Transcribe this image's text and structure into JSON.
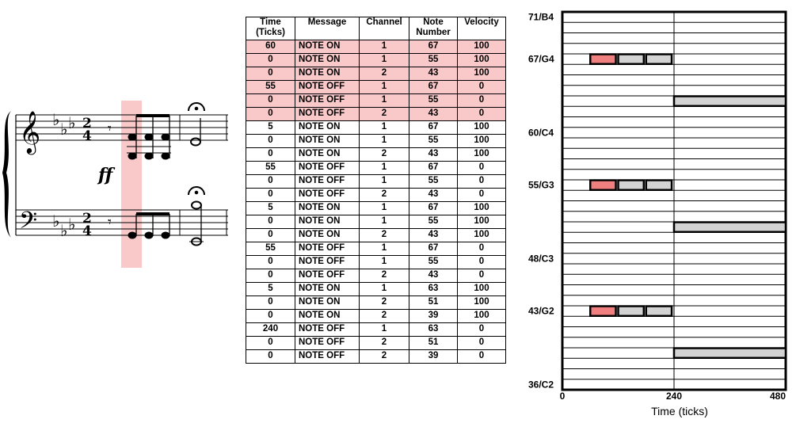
{
  "table": {
    "headers": [
      "Time\n(Ticks)",
      "Message",
      "Channel",
      "Note\nNumber",
      "Velocity"
    ],
    "highlight_rows": 6,
    "rows": [
      [
        "60",
        "NOTE ON",
        "1",
        "67",
        "100"
      ],
      [
        "0",
        "NOTE ON",
        "1",
        "55",
        "100"
      ],
      [
        "0",
        "NOTE ON",
        "2",
        "43",
        "100"
      ],
      [
        "55",
        "NOTE OFF",
        "1",
        "67",
        "0"
      ],
      [
        "0",
        "NOTE OFF",
        "1",
        "55",
        "0"
      ],
      [
        "0",
        "NOTE OFF",
        "2",
        "43",
        "0"
      ],
      [
        "5",
        "NOTE ON",
        "1",
        "67",
        "100"
      ],
      [
        "0",
        "NOTE ON",
        "1",
        "55",
        "100"
      ],
      [
        "0",
        "NOTE ON",
        "2",
        "43",
        "100"
      ],
      [
        "55",
        "NOTE OFF",
        "1",
        "67",
        "0"
      ],
      [
        "0",
        "NOTE OFF",
        "1",
        "55",
        "0"
      ],
      [
        "0",
        "NOTE OFF",
        "2",
        "43",
        "0"
      ],
      [
        "5",
        "NOTE ON",
        "1",
        "67",
        "100"
      ],
      [
        "0",
        "NOTE ON",
        "1",
        "55",
        "100"
      ],
      [
        "0",
        "NOTE ON",
        "2",
        "43",
        "100"
      ],
      [
        "55",
        "NOTE OFF",
        "1",
        "67",
        "0"
      ],
      [
        "0",
        "NOTE OFF",
        "1",
        "55",
        "0"
      ],
      [
        "0",
        "NOTE OFF",
        "2",
        "43",
        "0"
      ],
      [
        "5",
        "NOTE ON",
        "1",
        "63",
        "100"
      ],
      [
        "0",
        "NOTE ON",
        "2",
        "51",
        "100"
      ],
      [
        "0",
        "NOTE ON",
        "2",
        "39",
        "100"
      ],
      [
        "240",
        "NOTE OFF",
        "1",
        "63",
        "0"
      ],
      [
        "0",
        "NOTE OFF",
        "2",
        "51",
        "0"
      ],
      [
        "0",
        "NOTE OFF",
        "2",
        "39",
        "0"
      ]
    ]
  },
  "score": {
    "time_signature_top": "2",
    "time_signature_bottom": "4",
    "dynamic": "ff"
  },
  "piano_roll": {
    "pitch_labels": [
      {
        "pitch": 71,
        "label": "71/B4"
      },
      {
        "pitch": 67,
        "label": "67/G4"
      },
      {
        "pitch": 60,
        "label": "60/C4"
      },
      {
        "pitch": 55,
        "label": "55/G3"
      },
      {
        "pitch": 48,
        "label": "48/C3"
      },
      {
        "pitch": 43,
        "label": "43/G2"
      },
      {
        "pitch": 36,
        "label": "36/C2"
      }
    ],
    "pitch_range": [
      36,
      71
    ],
    "time_range": [
      0,
      480
    ],
    "x_ticks": [
      "0",
      "240",
      "480"
    ],
    "xlabel": "Time (ticks)",
    "highlight_color": "#f08080",
    "note_color": "#d3d3d3",
    "notes": [
      {
        "pitch": 67,
        "start": 60,
        "end": 115,
        "highlight": true
      },
      {
        "pitch": 55,
        "start": 60,
        "end": 115,
        "highlight": true
      },
      {
        "pitch": 43,
        "start": 60,
        "end": 115,
        "highlight": true
      },
      {
        "pitch": 67,
        "start": 120,
        "end": 175,
        "highlight": false
      },
      {
        "pitch": 55,
        "start": 120,
        "end": 175,
        "highlight": false
      },
      {
        "pitch": 43,
        "start": 120,
        "end": 175,
        "highlight": false
      },
      {
        "pitch": 67,
        "start": 180,
        "end": 235,
        "highlight": false
      },
      {
        "pitch": 55,
        "start": 180,
        "end": 235,
        "highlight": false
      },
      {
        "pitch": 43,
        "start": 180,
        "end": 235,
        "highlight": false
      },
      {
        "pitch": 63,
        "start": 240,
        "end": 480,
        "highlight": false
      },
      {
        "pitch": 51,
        "start": 240,
        "end": 480,
        "highlight": false
      },
      {
        "pitch": 39,
        "start": 240,
        "end": 480,
        "highlight": false
      }
    ]
  }
}
